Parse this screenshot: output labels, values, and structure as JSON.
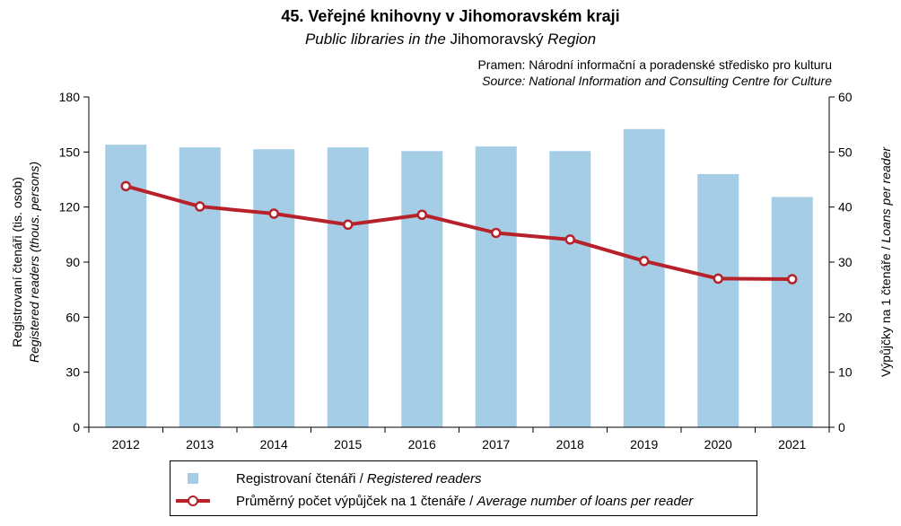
{
  "header": {
    "title": "45. Veřejné knihovny v Jihomoravském kraji",
    "subtitle_italic_1": "Public libraries in the",
    "subtitle_plain": " Jihomoravský ",
    "subtitle_italic_2": "Region",
    "source_cz": "Pramen: Národní informační a poradenské středisko pro kulturu",
    "source_en": "Source: National Information and Consulting Centre for Culture"
  },
  "legend": {
    "bars_cz": "Registrovaní  čtenáři / ",
    "bars_en": "Registered readers",
    "line_cz": "Průměrný počet výpůjček na 1 čtenáře / ",
    "line_en": "Average number of loans per reader"
  },
  "colors": {
    "bar": "#a6cde6",
    "line": "#b7222a"
  },
  "chart_data": {
    "type": "bar",
    "categories": [
      "2012",
      "2013",
      "2014",
      "2015",
      "2016",
      "2017",
      "2018",
      "2019",
      "2020",
      "2021"
    ],
    "series": [
      {
        "name": "Registrovaní čtenáři / Registered readers",
        "type": "bar",
        "axis": "left",
        "values": [
          154,
          152.5,
          151.5,
          152.5,
          150.5,
          153,
          150.5,
          162.5,
          138,
          125.5
        ]
      },
      {
        "name": "Průměrný počet výpůjček na 1 čtenáře / Average number of loans per reader",
        "type": "line",
        "axis": "right",
        "values": [
          43.8,
          40.1,
          38.8,
          36.8,
          38.6,
          35.3,
          34.1,
          30.2,
          27.0,
          26.9
        ]
      }
    ],
    "ylim": [
      0,
      180
    ],
    "yticks": [
      0,
      30,
      60,
      90,
      120,
      150,
      180
    ],
    "y2lim": [
      0,
      60
    ],
    "y2ticks": [
      0,
      10,
      20,
      30,
      40,
      50,
      60
    ],
    "ylabel_cz": "Registrovaní  čtenáři (tis. osob)",
    "ylabel_en": "Registered readers (thous. persons)",
    "y2label_cz": "Výpůjčky na 1 čtenáře / ",
    "y2label_en": "Loans per reader",
    "legend_position": "bottom"
  }
}
